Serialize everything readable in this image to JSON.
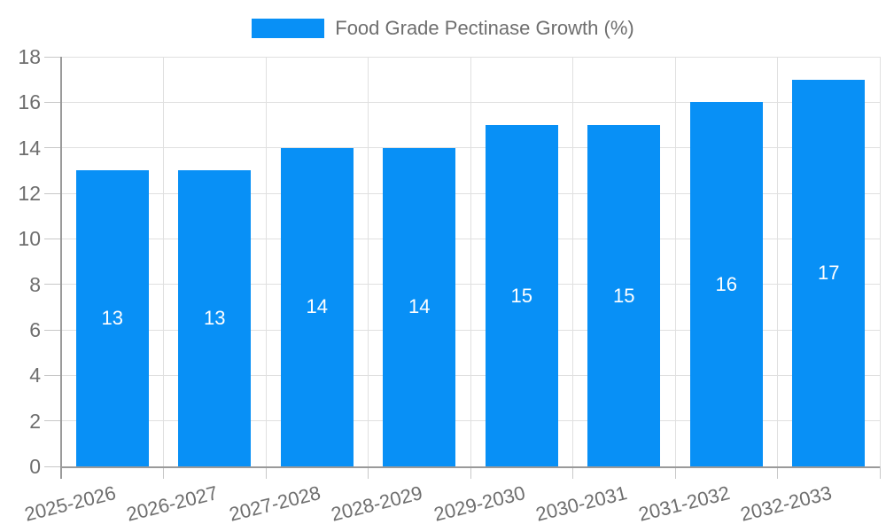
{
  "legend": {
    "label": "Food Grade Pectinase Growth (%)"
  },
  "chart_data": {
    "type": "bar",
    "title": "Food Grade Pectinase Growth (%)",
    "categories": [
      "2025-2026",
      "2026-2027",
      "2027-2028",
      "2028-2029",
      "2029-2030",
      "2030-2031",
      "2031-2032",
      "2032-2033"
    ],
    "values": [
      13,
      13,
      14,
      14,
      15,
      15,
      16,
      17
    ],
    "bar_labels": [
      "13",
      "13",
      "14",
      "14",
      "15",
      "15",
      "16",
      "17"
    ],
    "xlabel": "",
    "ylabel": "",
    "ylim": [
      0,
      18
    ],
    "yticks": [
      0,
      2,
      4,
      6,
      8,
      10,
      12,
      14,
      16,
      18
    ],
    "grid": true,
    "legend_position": "top-center",
    "x_label_rotation_deg": -14
  },
  "colors": {
    "bar": "#0890f6",
    "bar_label": "#ffffff",
    "grid": "#e0e0e0",
    "tick": "#c8c8c8",
    "axis": "#9a9a9a",
    "text": "#6e6e6e",
    "background": "#ffffff"
  }
}
